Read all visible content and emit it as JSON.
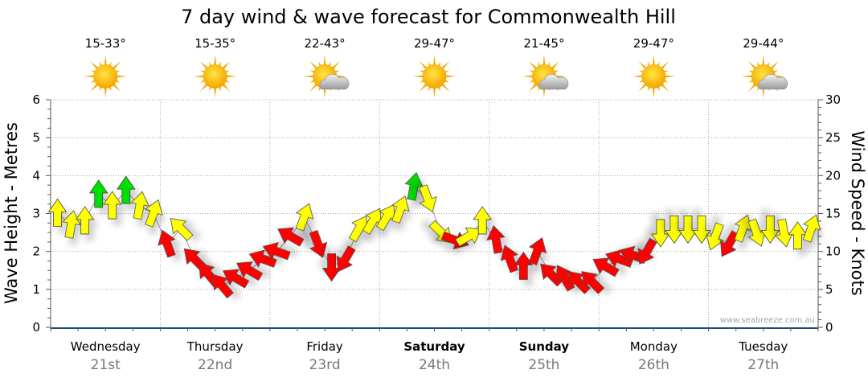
{
  "chart_data": {
    "type": "scatter",
    "title": "7 day wind & wave forecast for Commonwealth Hill",
    "ylabel_left": "Wave Height - Metres",
    "ylabel_right": "Wind Speed - Knots",
    "ylim_left": [
      0,
      6
    ],
    "ylim_right": [
      0,
      30
    ],
    "yticks_left": [
      "0",
      "1",
      "2",
      "3",
      "4",
      "5",
      "6"
    ],
    "yticks_right": [
      "0",
      "5",
      "10",
      "15",
      "20",
      "25",
      "30"
    ],
    "grid": true,
    "watermark": "www.seabreeze.com.au",
    "days": [
      {
        "name": "Wednesday",
        "date": "21st",
        "temp": "15-33°",
        "weather": "sunny",
        "bold": false
      },
      {
        "name": "Thursday",
        "date": "22nd",
        "temp": "15-35°",
        "weather": "sunny",
        "bold": false
      },
      {
        "name": "Friday",
        "date": "23rd",
        "temp": "22-43°",
        "weather": "partly-cloudy",
        "bold": false
      },
      {
        "name": "Saturday",
        "date": "24th",
        "temp": "29-47°",
        "weather": "sunny",
        "bold": true
      },
      {
        "name": "Sunday",
        "date": "25th",
        "temp": "21-45°",
        "weather": "partly-cloudy",
        "bold": true
      },
      {
        "name": "Monday",
        "date": "26th",
        "temp": "29-47°",
        "weather": "sunny",
        "bold": false
      },
      {
        "name": "Tuesday",
        "date": "27th",
        "temp": "29-44°",
        "weather": "partly-cloudy",
        "bold": false
      }
    ],
    "colors": {
      "Y": "#ffff00",
      "R": "#ff0000",
      "G": "#00e000"
    },
    "wind_interval_hours": 3,
    "wind": [
      [
        15,
        0,
        "Y"
      ],
      [
        13.5,
        10,
        "Y"
      ],
      [
        14,
        0,
        "Y"
      ],
      [
        17.5,
        0,
        "G"
      ],
      [
        16,
        0,
        "Y"
      ],
      [
        18,
        0,
        "G"
      ],
      [
        16,
        10,
        "Y"
      ],
      [
        15,
        20,
        "Y"
      ],
      [
        11,
        -20,
        "R"
      ],
      [
        13,
        -45,
        "Y"
      ],
      [
        9,
        -45,
        "R"
      ],
      [
        7,
        -40,
        "R"
      ],
      [
        5.5,
        -40,
        "R"
      ],
      [
        6.5,
        -60,
        "R"
      ],
      [
        7.5,
        -60,
        "R"
      ],
      [
        9,
        -70,
        "R"
      ],
      [
        10,
        -70,
        "R"
      ],
      [
        12,
        -60,
        "R"
      ],
      [
        14.5,
        20,
        "Y"
      ],
      [
        11,
        160,
        "R"
      ],
      [
        8,
        180,
        "R"
      ],
      [
        9,
        210,
        "R"
      ],
      [
        13,
        30,
        "Y"
      ],
      [
        14,
        30,
        "Y"
      ],
      [
        14.5,
        30,
        "Y"
      ],
      [
        15.5,
        20,
        "Y"
      ],
      [
        18.5,
        10,
        "G"
      ],
      [
        17,
        160,
        "Y"
      ],
      [
        12.5,
        135,
        "Y"
      ],
      [
        11.5,
        110,
        "R"
      ],
      [
        12,
        60,
        "Y"
      ],
      [
        14,
        0,
        "Y"
      ],
      [
        11.5,
        -10,
        "R"
      ],
      [
        9,
        -20,
        "R"
      ],
      [
        8,
        0,
        "R"
      ],
      [
        10,
        20,
        "R"
      ],
      [
        7,
        -45,
        "R"
      ],
      [
        6.5,
        -30,
        "R"
      ],
      [
        6,
        -45,
        "R"
      ],
      [
        6,
        -45,
        "R"
      ],
      [
        8,
        -60,
        "R"
      ],
      [
        9,
        -70,
        "R"
      ],
      [
        9.5,
        -70,
        "R"
      ],
      [
        10,
        210,
        "R"
      ],
      [
        12.5,
        180,
        "Y"
      ],
      [
        13,
        180,
        "Y"
      ],
      [
        13,
        180,
        "Y"
      ],
      [
        13,
        180,
        "Y"
      ],
      [
        12,
        200,
        "Y"
      ],
      [
        11,
        210,
        "R"
      ],
      [
        13,
        20,
        "Y"
      ],
      [
        12.5,
        160,
        "Y"
      ],
      [
        13,
        180,
        "Y"
      ],
      [
        12.5,
        170,
        "Y"
      ],
      [
        12,
        0,
        "Y"
      ],
      [
        13,
        20,
        "Y"
      ]
    ]
  }
}
